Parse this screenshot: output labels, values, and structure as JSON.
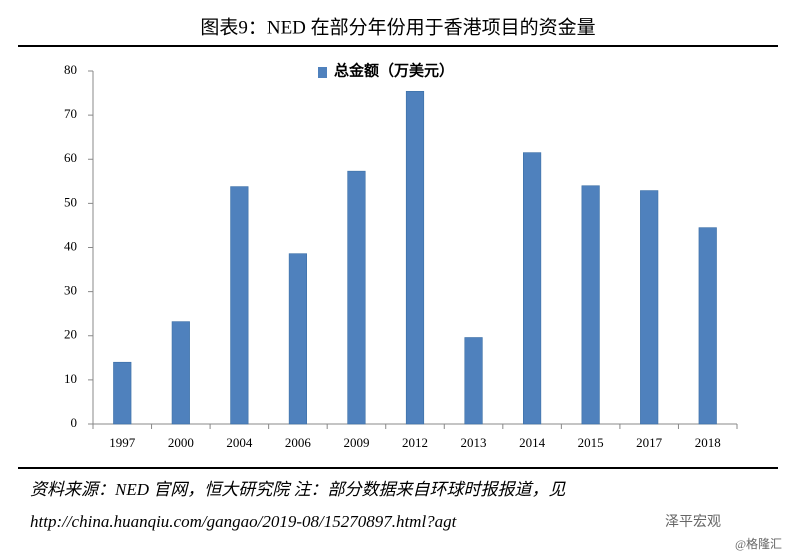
{
  "chart_data": {
    "type": "bar",
    "title": "图表9：NED 在部分年份用于香港项目的资金量",
    "categories": [
      "1997",
      "2000",
      "2004",
      "2006",
      "2009",
      "2012",
      "2013",
      "2014",
      "2015",
      "2017",
      "2018"
    ],
    "series": [
      {
        "name": "总金额（万美元）",
        "color": "#4f81bd",
        "values": [
          14,
          23.2,
          53.8,
          38.6,
          57.3,
          75.4,
          19.6,
          61.5,
          54,
          52.9,
          44.5
        ]
      }
    ],
    "ylim": [
      0,
      80
    ],
    "yticks": [
      0,
      10,
      20,
      30,
      40,
      50,
      60,
      70,
      80
    ],
    "grid": false,
    "legend": "top"
  },
  "source": {
    "line1": "资料来源：NED 官网，恒大研究院 注：部分数据来自环球时报报道，见",
    "line2": "http://china.huanqiu.com/gangao/2019-08/15270897.html?agt"
  },
  "watermark": {
    "brand": "泽平宏观",
    "site": "@格隆汇"
  }
}
